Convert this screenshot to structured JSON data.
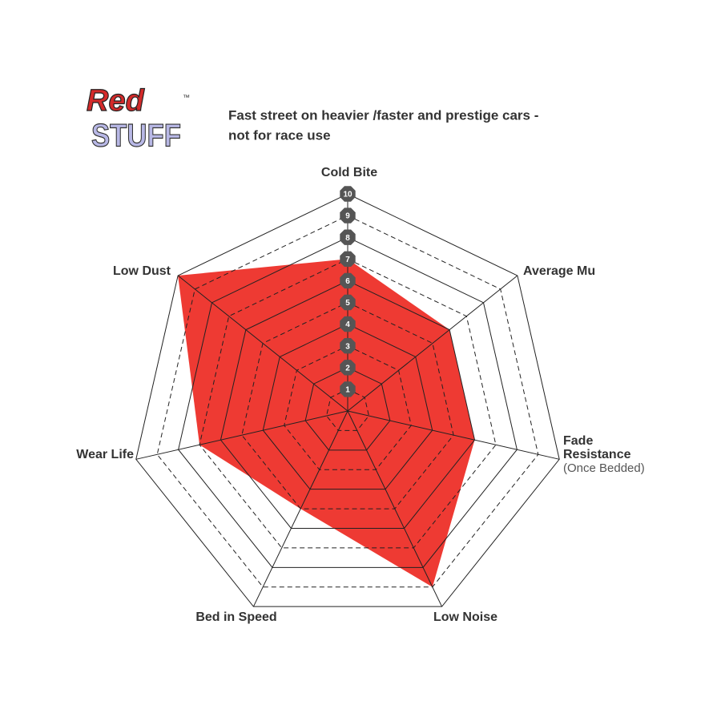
{
  "logo": {
    "line1": "Red",
    "line2": "STUFF",
    "mark": "™"
  },
  "chart_data": {
    "type": "radar",
    "title": [
      "Fast street on heavier /faster and prestige cars -",
      "not for race use"
    ],
    "categories": [
      "Cold Bite",
      "Average Mu",
      "Fade Resistance",
      "Low Noise",
      "Bed in Speed",
      "Wear Life",
      "Low Dust"
    ],
    "category_note": "(Once Bedded)",
    "values": [
      7,
      6,
      6,
      9,
      5,
      7,
      10
    ],
    "color": "#ee3a33",
    "rlim": [
      0,
      10
    ],
    "rticks": [
      1,
      2,
      3,
      4,
      5,
      6,
      7,
      8,
      9,
      10
    ],
    "grid": true
  }
}
